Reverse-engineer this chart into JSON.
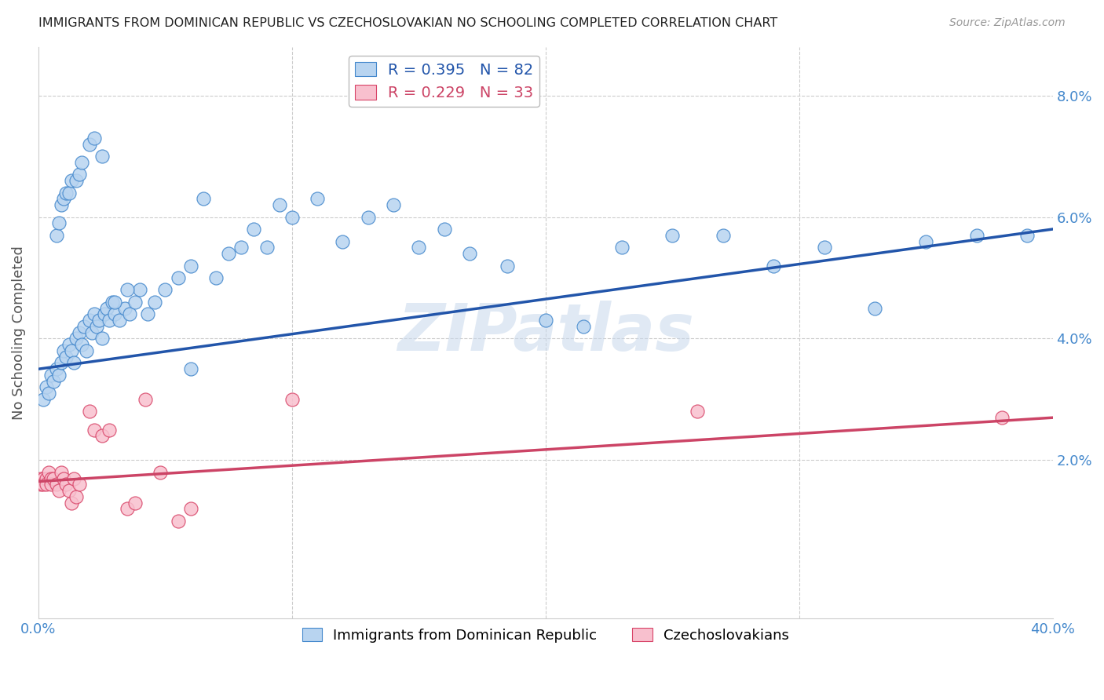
{
  "title": "IMMIGRANTS FROM DOMINICAN REPUBLIC VS CZECHOSLOVAKIAN NO SCHOOLING COMPLETED CORRELATION CHART",
  "source": "Source: ZipAtlas.com",
  "ylabel": "No Schooling Completed",
  "legend_label_blue": "Immigrants from Dominican Republic",
  "legend_label_pink": "Czechoslovakians",
  "blue_R": "0.395",
  "blue_N": "82",
  "pink_R": "0.229",
  "pink_N": "33",
  "blue_color": "#B8D4F0",
  "blue_edge_color": "#4488CC",
  "pink_color": "#F8C0CE",
  "pink_edge_color": "#D84468",
  "blue_line_color": "#2255AA",
  "pink_line_color": "#CC4466",
  "axis_tick_color": "#4488CC",
  "title_color": "#222222",
  "source_color": "#999999",
  "ylabel_color": "#555555",
  "grid_color": "#CCCCCC",
  "watermark_text": "ZIPatlas",
  "watermark_color": "#C8D8EC",
  "xmin": 0.0,
  "xmax": 0.4,
  "ymin": -0.006,
  "ymax": 0.088,
  "yticks": [
    0.02,
    0.04,
    0.06,
    0.08
  ],
  "ytick_labels": [
    "2.0%",
    "4.0%",
    "6.0%",
    "8.0%"
  ],
  "xgrid_lines": [
    0.1,
    0.2,
    0.3
  ],
  "blue_line_x": [
    0.0,
    0.4
  ],
  "blue_line_y": [
    0.035,
    0.058
  ],
  "pink_line_x": [
    0.0,
    0.4
  ],
  "pink_line_y": [
    0.0165,
    0.027
  ],
  "blue_x": [
    0.002,
    0.003,
    0.004,
    0.005,
    0.006,
    0.007,
    0.008,
    0.009,
    0.01,
    0.011,
    0.012,
    0.013,
    0.014,
    0.015,
    0.016,
    0.017,
    0.018,
    0.019,
    0.02,
    0.021,
    0.022,
    0.023,
    0.024,
    0.025,
    0.026,
    0.027,
    0.028,
    0.029,
    0.03,
    0.032,
    0.034,
    0.036,
    0.038,
    0.04,
    0.043,
    0.046,
    0.05,
    0.055,
    0.06,
    0.065,
    0.07,
    0.075,
    0.08,
    0.085,
    0.09,
    0.095,
    0.1,
    0.11,
    0.12,
    0.13,
    0.14,
    0.15,
    0.16,
    0.17,
    0.185,
    0.2,
    0.215,
    0.23,
    0.25,
    0.27,
    0.29,
    0.31,
    0.33,
    0.35,
    0.37,
    0.39,
    0.007,
    0.008,
    0.009,
    0.01,
    0.011,
    0.012,
    0.013,
    0.015,
    0.016,
    0.017,
    0.02,
    0.022,
    0.025,
    0.03,
    0.035,
    0.06
  ],
  "blue_y": [
    0.03,
    0.032,
    0.031,
    0.034,
    0.033,
    0.035,
    0.034,
    0.036,
    0.038,
    0.037,
    0.039,
    0.038,
    0.036,
    0.04,
    0.041,
    0.039,
    0.042,
    0.038,
    0.043,
    0.041,
    0.044,
    0.042,
    0.043,
    0.04,
    0.044,
    0.045,
    0.043,
    0.046,
    0.044,
    0.043,
    0.045,
    0.044,
    0.046,
    0.048,
    0.044,
    0.046,
    0.048,
    0.05,
    0.052,
    0.063,
    0.05,
    0.054,
    0.055,
    0.058,
    0.055,
    0.062,
    0.06,
    0.063,
    0.056,
    0.06,
    0.062,
    0.055,
    0.058,
    0.054,
    0.052,
    0.043,
    0.042,
    0.055,
    0.057,
    0.057,
    0.052,
    0.055,
    0.045,
    0.056,
    0.057,
    0.057,
    0.057,
    0.059,
    0.062,
    0.063,
    0.064,
    0.064,
    0.066,
    0.066,
    0.067,
    0.069,
    0.072,
    0.073,
    0.07,
    0.046,
    0.048,
    0.035
  ],
  "pink_x": [
    0.001,
    0.001,
    0.002,
    0.002,
    0.003,
    0.003,
    0.004,
    0.005,
    0.005,
    0.006,
    0.007,
    0.008,
    0.009,
    0.01,
    0.011,
    0.012,
    0.013,
    0.014,
    0.015,
    0.016,
    0.02,
    0.022,
    0.025,
    0.028,
    0.035,
    0.038,
    0.042,
    0.048,
    0.055,
    0.06,
    0.1,
    0.26,
    0.38
  ],
  "pink_y": [
    0.017,
    0.016,
    0.017,
    0.016,
    0.017,
    0.016,
    0.018,
    0.017,
    0.016,
    0.017,
    0.016,
    0.015,
    0.018,
    0.017,
    0.016,
    0.015,
    0.013,
    0.017,
    0.014,
    0.016,
    0.028,
    0.025,
    0.024,
    0.025,
    0.012,
    0.013,
    0.03,
    0.018,
    0.01,
    0.012,
    0.03,
    0.028,
    0.027
  ]
}
